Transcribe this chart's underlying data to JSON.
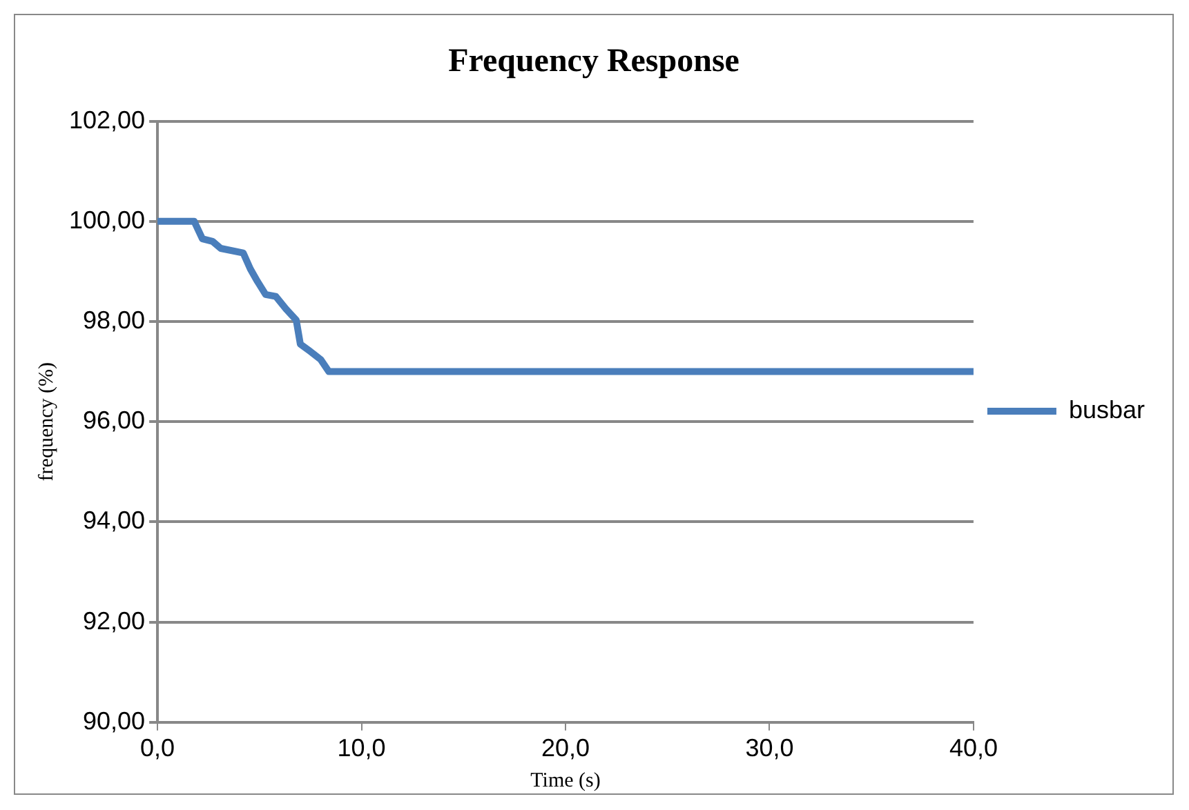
{
  "chart_data": {
    "type": "line",
    "title": "Frequency Response",
    "xlabel": "Time (s)",
    "ylabel": "frequency (%)",
    "xlim": [
      0,
      40
    ],
    "xticks": [
      {
        "value": 0,
        "label": "0,0"
      },
      {
        "value": 10,
        "label": "10,0"
      },
      {
        "value": 20,
        "label": "20,0"
      },
      {
        "value": 30,
        "label": "30,0"
      },
      {
        "value": 40,
        "label": "40,0"
      }
    ],
    "ylim": [
      90,
      102
    ],
    "yticks": [
      {
        "value": 90,
        "label": "90,00"
      },
      {
        "value": 92,
        "label": "92,00"
      },
      {
        "value": 94,
        "label": "94,00"
      },
      {
        "value": 96,
        "label": "96,00"
      },
      {
        "value": 98,
        "label": "98,00"
      },
      {
        "value": 100,
        "label": "100,00"
      },
      {
        "value": 102,
        "label": "102,00"
      }
    ],
    "grid": "y",
    "legend": "right",
    "marker": "none",
    "line_style": "solid",
    "series": [
      {
        "name": "busbar",
        "color": "#4a7ebb",
        "x": [
          0,
          1.8,
          2.2,
          2.7,
          3.1,
          4.2,
          4.55,
          4.9,
          5.3,
          5.8,
          6.3,
          6.8,
          7.0,
          7.5,
          8.0,
          8.4,
          40
        ],
        "values": [
          100,
          100,
          99.65,
          99.6,
          99.46,
          99.37,
          99.05,
          98.8,
          98.54,
          98.5,
          98.25,
          98.03,
          97.55,
          97.4,
          97.24,
          97.0,
          97.0
        ]
      }
    ]
  }
}
